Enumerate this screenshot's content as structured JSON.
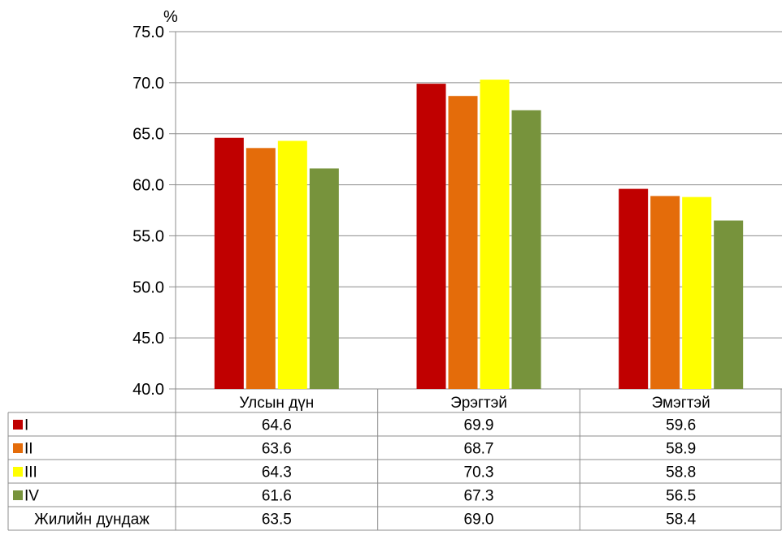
{
  "chart_data": {
    "type": "bar",
    "ylabel": "%",
    "ylim": [
      40,
      75
    ],
    "yticks": [
      "40.0",
      "45.0",
      "50.0",
      "55.0",
      "60.0",
      "65.0",
      "70.0",
      "75.0"
    ],
    "grid": true,
    "categories": [
      "Улсын дүн",
      "Эрэгтэй",
      "Эмэгтэй"
    ],
    "series": [
      {
        "name": "I",
        "color": "#C00000",
        "values": [
          64.6,
          69.9,
          59.6
        ],
        "labels": [
          "64.6",
          "69.9",
          "59.6"
        ]
      },
      {
        "name": "II",
        "color": "#E46C0A",
        "values": [
          63.6,
          68.7,
          58.9
        ],
        "labels": [
          "63.6",
          "68.7",
          "58.9"
        ]
      },
      {
        "name": "III",
        "color": "#FFFF00",
        "values": [
          64.3,
          70.3,
          58.8
        ],
        "labels": [
          "64.3",
          "70.3",
          "58.8"
        ]
      },
      {
        "name": "IV",
        "color": "#77933C",
        "values": [
          61.6,
          67.3,
          56.5
        ],
        "labels": [
          "61.6",
          "67.3",
          "56.5"
        ]
      }
    ],
    "table_extra_row": {
      "name": "Жилийн дундаж",
      "values": [
        63.5,
        69.0,
        58.4
      ],
      "labels": [
        "63.5",
        "69.0",
        "58.4"
      ]
    }
  }
}
